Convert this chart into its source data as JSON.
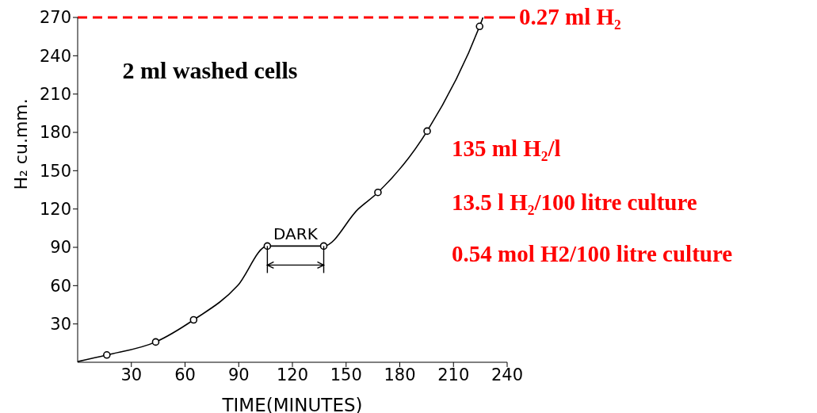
{
  "chart_data": {
    "type": "line",
    "xlabel": "TIME(MINUTES)",
    "ylabel": "H₂ cu.mm.",
    "xlim": [
      0,
      240
    ],
    "xticks": [
      30,
      60,
      90,
      120,
      150,
      180,
      210,
      240
    ],
    "ylim": [
      0,
      270
    ],
    "yticks": [
      30,
      60,
      90,
      120,
      150,
      180,
      210,
      240,
      270
    ],
    "series": [
      {
        "marker": "none",
        "color": "#000000",
        "x": [
          0,
          16.3,
          43.6,
          64.8,
          89.4,
          106,
          137.5,
          156.8,
          167.8,
          195.3,
          224.6,
          226.5
        ],
        "values": [
          0.5,
          5.7,
          15.9,
          33.2,
          60,
          91,
          91,
          120,
          133,
          181,
          263,
          270
        ]
      },
      {
        "type": "scatter",
        "marker": "circle",
        "color": "#000000",
        "x": [
          16.3,
          43.6,
          64.8,
          106,
          137.5,
          167.8,
          195.3,
          224.6
        ],
        "values": [
          5.7,
          15.9,
          33.2,
          91,
          91,
          133,
          181,
          263
        ]
      }
    ],
    "ref_lines": [
      {
        "axis": "y",
        "value": 270,
        "label": "0.27 ml H₂",
        "color": "#ff0000",
        "line_style": "dashed"
      }
    ],
    "annotations": [
      {
        "text": "DARK",
        "x": 121.75,
        "y": 91
      },
      "2 ml washed cells",
      "135 ml H₂/l",
      "13.5 l H₂/100 litre culture",
      "0.54 mol H2/100 litre culture"
    ]
  }
}
